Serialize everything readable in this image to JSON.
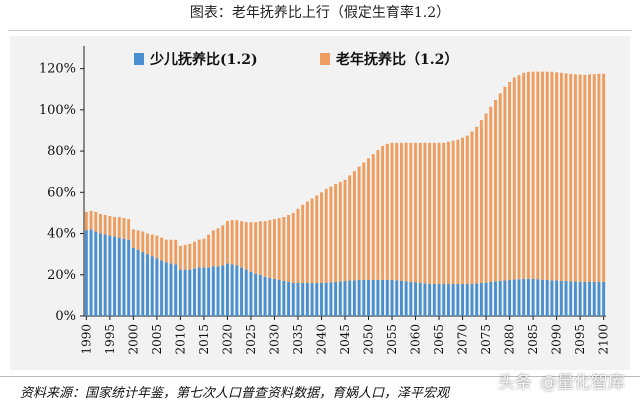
{
  "figure_title": "图表：老年抚养比上行（假定生育率1.2）",
  "source_note": "资料来源：国家统计年鉴，第七次人口普查资料数据，育娲人口，泽平宏观",
  "watermark": {
    "left": "头条",
    "right": "@量化智库"
  },
  "colors": {
    "youth": "#4a8fd0",
    "elderly": "#ee9d5e",
    "panel": "#f2f2f2",
    "axis": "#222222"
  },
  "chart_data": {
    "type": "bar",
    "stacked": true,
    "ylim": [
      0,
      1.3
    ],
    "yticks": [
      0,
      0.2,
      0.4,
      0.6,
      0.8,
      1.0,
      1.2
    ],
    "ytick_labels": [
      "0%",
      "20%",
      "40%",
      "60%",
      "80%",
      "100%",
      "120%"
    ],
    "xtick_labels": [
      "1990",
      "1995",
      "2000",
      "2005",
      "2010",
      "2015",
      "2020",
      "2025",
      "2030",
      "2035",
      "2040",
      "2045",
      "2050",
      "2055",
      "2060",
      "2065",
      "2070",
      "2075",
      "2080",
      "2085",
      "2090",
      "2095",
      "2100"
    ],
    "legend": {
      "position": "top",
      "youth_label": "少儿抚养比(1.2)",
      "elderly_label": "老年抚养比（1.2）"
    },
    "categories": [
      1990,
      1991,
      1992,
      1993,
      1994,
      1995,
      1996,
      1997,
      1998,
      1999,
      2000,
      2001,
      2002,
      2003,
      2004,
      2005,
      2006,
      2007,
      2008,
      2009,
      2010,
      2011,
      2012,
      2013,
      2014,
      2015,
      2016,
      2017,
      2018,
      2019,
      2020,
      2021,
      2022,
      2023,
      2024,
      2025,
      2026,
      2027,
      2028,
      2029,
      2030,
      2031,
      2032,
      2033,
      2034,
      2035,
      2036,
      2037,
      2038,
      2039,
      2040,
      2041,
      2042,
      2043,
      2044,
      2045,
      2046,
      2047,
      2048,
      2049,
      2050,
      2051,
      2052,
      2053,
      2054,
      2055,
      2056,
      2057,
      2058,
      2059,
      2060,
      2061,
      2062,
      2063,
      2064,
      2065,
      2066,
      2067,
      2068,
      2069,
      2070,
      2071,
      2072,
      2073,
      2074,
      2075,
      2076,
      2077,
      2078,
      2079,
      2080,
      2081,
      2082,
      2083,
      2084,
      2085,
      2086,
      2087,
      2088,
      2089,
      2090,
      2091,
      2092,
      2093,
      2094,
      2095,
      2096,
      2097,
      2098,
      2099,
      2100
    ],
    "series": [
      {
        "name": "少儿抚养比(1.2)",
        "values": [
          0.415,
          0.42,
          0.41,
          0.4,
          0.395,
          0.39,
          0.385,
          0.38,
          0.375,
          0.37,
          0.33,
          0.32,
          0.31,
          0.3,
          0.29,
          0.28,
          0.27,
          0.26,
          0.255,
          0.25,
          0.225,
          0.225,
          0.225,
          0.23,
          0.235,
          0.235,
          0.235,
          0.24,
          0.24,
          0.245,
          0.255,
          0.25,
          0.245,
          0.235,
          0.225,
          0.215,
          0.205,
          0.2,
          0.19,
          0.185,
          0.18,
          0.175,
          0.17,
          0.165,
          0.16,
          0.16,
          0.16,
          0.16,
          0.16,
          0.16,
          0.16,
          0.162,
          0.163,
          0.165,
          0.167,
          0.17,
          0.172,
          0.173,
          0.175,
          0.175,
          0.175,
          0.175,
          0.175,
          0.175,
          0.175,
          0.175,
          0.173,
          0.17,
          0.168,
          0.165,
          0.163,
          0.16,
          0.158,
          0.155,
          0.155,
          0.155,
          0.155,
          0.155,
          0.155,
          0.155,
          0.155,
          0.155,
          0.155,
          0.158,
          0.16,
          0.162,
          0.165,
          0.168,
          0.17,
          0.172,
          0.175,
          0.177,
          0.178,
          0.18,
          0.18,
          0.18,
          0.178,
          0.176,
          0.175,
          0.173,
          0.172,
          0.17,
          0.17,
          0.168,
          0.167,
          0.166,
          0.165,
          0.165,
          0.165,
          0.165,
          0.165
        ]
      },
      {
        "name": "老年抚养比（1.2）",
        "values": [
          0.09,
          0.09,
          0.095,
          0.095,
          0.095,
          0.095,
          0.095,
          0.1,
          0.1,
          0.1,
          0.09,
          0.095,
          0.1,
          0.1,
          0.105,
          0.11,
          0.11,
          0.11,
          0.115,
          0.12,
          0.115,
          0.12,
          0.125,
          0.13,
          0.135,
          0.14,
          0.16,
          0.175,
          0.185,
          0.195,
          0.205,
          0.215,
          0.22,
          0.225,
          0.23,
          0.24,
          0.25,
          0.26,
          0.27,
          0.28,
          0.29,
          0.3,
          0.31,
          0.325,
          0.34,
          0.36,
          0.38,
          0.395,
          0.41,
          0.425,
          0.44,
          0.455,
          0.465,
          0.475,
          0.483,
          0.49,
          0.51,
          0.53,
          0.55,
          0.57,
          0.59,
          0.61,
          0.63,
          0.65,
          0.66,
          0.665,
          0.667,
          0.67,
          0.672,
          0.675,
          0.677,
          0.68,
          0.682,
          0.685,
          0.685,
          0.685,
          0.685,
          0.69,
          0.695,
          0.7,
          0.71,
          0.72,
          0.74,
          0.76,
          0.79,
          0.82,
          0.85,
          0.88,
          0.91,
          0.94,
          0.96,
          0.98,
          0.99,
          1.0,
          1.005,
          1.005,
          1.007,
          1.009,
          1.01,
          1.012,
          1.01,
          1.01,
          1.007,
          1.006,
          1.005,
          1.005,
          1.005,
          1.007,
          1.008,
          1.01,
          1.01
        ]
      }
    ]
  }
}
